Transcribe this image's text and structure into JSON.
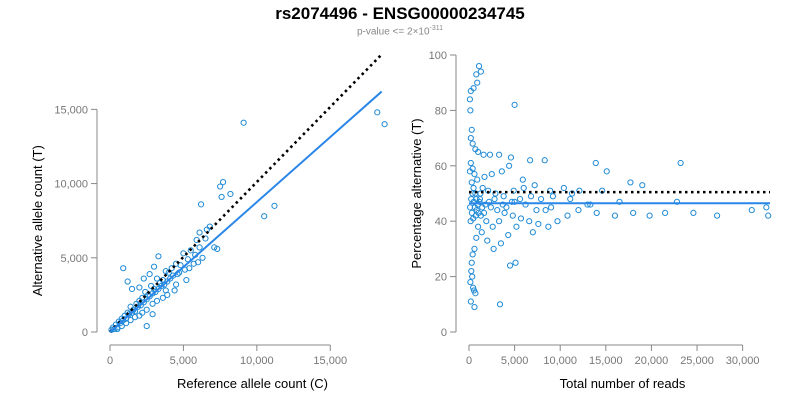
{
  "title": "rs2074496 - ENSG00000234745",
  "subtitle": {
    "prefix": "p-value <= 2×10",
    "exponent": "-311"
  },
  "colors": {
    "points": "#1f8ad6",
    "fit_line": "#2a86e8",
    "dotted_line": "#000000",
    "axis": "#888888",
    "tick_label": "#777777",
    "axis_label": "#000000"
  },
  "chart_data": [
    {
      "type": "scatter",
      "xlabel": "Reference allele count (C)",
      "ylabel": "Alternative allele count (T)",
      "xlim": [
        0,
        19000
      ],
      "ylim": [
        0,
        19000
      ],
      "xticks": [
        0,
        5000,
        10000,
        15000
      ],
      "xtick_labels": [
        "0",
        "5,000",
        "10,000",
        "15,000"
      ],
      "yticks": [
        0,
        5000,
        10000,
        15000
      ],
      "ytick_labels": [
        "0",
        "5,000",
        "10,000",
        "15,000"
      ],
      "marker": "open-circle",
      "lines": [
        {
          "style": "dotted",
          "x": [
            0,
            18500
          ],
          "y": [
            0,
            18700
          ]
        },
        {
          "style": "solid",
          "x": [
            0,
            18500
          ],
          "y": [
            0,
            16200
          ]
        }
      ],
      "points": [
        [
          18200,
          14800
        ],
        [
          18700,
          14000
        ],
        [
          9100,
          14100
        ],
        [
          11200,
          8500
        ],
        [
          10500,
          7800
        ],
        [
          8200,
          9300
        ],
        [
          7600,
          9100
        ],
        [
          7500,
          9800
        ],
        [
          7700,
          10100
        ],
        [
          6200,
          8600
        ],
        [
          6800,
          7100
        ],
        [
          6600,
          6900
        ],
        [
          6500,
          6300
        ],
        [
          5900,
          6200
        ],
        [
          6100,
          6700
        ],
        [
          5500,
          5500
        ],
        [
          5800,
          5200
        ],
        [
          5300,
          4900
        ],
        [
          5000,
          5300
        ],
        [
          4800,
          4500
        ],
        [
          4500,
          4600
        ],
        [
          4200,
          4300
        ],
        [
          4000,
          4000
        ],
        [
          3800,
          4100
        ],
        [
          3600,
          3500
        ],
        [
          3400,
          3300
        ],
        [
          3200,
          3600
        ],
        [
          3000,
          2900
        ],
        [
          2800,
          3100
        ],
        [
          2600,
          2500
        ],
        [
          2400,
          2700
        ],
        [
          2200,
          2300
        ],
        [
          2000,
          2100
        ],
        [
          1800,
          1900
        ],
        [
          1600,
          1500
        ],
        [
          1400,
          1700
        ],
        [
          1200,
          1300
        ],
        [
          1000,
          1100
        ],
        [
          800,
          900
        ],
        [
          600,
          700
        ],
        [
          400,
          500
        ],
        [
          200,
          300
        ],
        [
          100,
          150
        ],
        [
          300,
          200
        ],
        [
          500,
          300
        ],
        [
          700,
          600
        ],
        [
          900,
          800
        ],
        [
          1100,
          900
        ],
        [
          1300,
          1200
        ],
        [
          1500,
          1300
        ],
        [
          1700,
          1400
        ],
        [
          1900,
          1700
        ],
        [
          2100,
          1800
        ],
        [
          2300,
          2000
        ],
        [
          2500,
          2200
        ],
        [
          2700,
          2400
        ],
        [
          2900,
          2600
        ],
        [
          3100,
          2700
        ],
        [
          3300,
          2900
        ],
        [
          3500,
          3100
        ],
        [
          3700,
          3200
        ],
        [
          3900,
          3400
        ],
        [
          4100,
          3600
        ],
        [
          4300,
          3800
        ],
        [
          4600,
          3900
        ],
        [
          5100,
          4200
        ],
        [
          5400,
          4300
        ],
        [
          5700,
          4600
        ],
        [
          6000,
          4700
        ],
        [
          6300,
          5000
        ],
        [
          7100,
          5700
        ],
        [
          7300,
          5600
        ],
        [
          4400,
          2800
        ],
        [
          3900,
          2500
        ],
        [
          3600,
          2300
        ],
        [
          3200,
          2100
        ],
        [
          2900,
          1900
        ],
        [
          2500,
          1500
        ],
        [
          2200,
          1300
        ],
        [
          2000,
          1100
        ],
        [
          1700,
          1000
        ],
        [
          1400,
          800
        ],
        [
          1100,
          600
        ],
        [
          800,
          400
        ],
        [
          500,
          200
        ],
        [
          900,
          4300
        ],
        [
          1200,
          3400
        ],
        [
          1500,
          2900
        ],
        [
          2000,
          3000
        ],
        [
          2300,
          3600
        ],
        [
          2700,
          3900
        ],
        [
          3000,
          4400
        ],
        [
          3300,
          5100
        ],
        [
          2500,
          400
        ],
        [
          2900,
          1200
        ],
        [
          3800,
          2800
        ],
        [
          4500,
          3200
        ],
        [
          5200,
          3500
        ],
        [
          6100,
          5700
        ],
        [
          4700,
          4000
        ]
      ]
    },
    {
      "type": "scatter",
      "xlabel": "Total number of reads",
      "ylabel": "Percentage alternative (T)",
      "xlim": [
        0,
        33000
      ],
      "ylim": [
        0,
        100
      ],
      "xticks": [
        0,
        5000,
        10000,
        15000,
        20000,
        25000,
        30000
      ],
      "xtick_labels": [
        "0",
        "5,000",
        "10,000",
        "15,000",
        "20,000",
        "25,000",
        "30,000"
      ],
      "yticks": [
        0,
        20,
        40,
        60,
        80,
        100
      ],
      "ytick_labels": [
        "0",
        "20",
        "40",
        "60",
        "80",
        "100"
      ],
      "marker": "open-circle",
      "lines": [
        {
          "style": "dotted",
          "x": [
            0,
            33000
          ],
          "y": [
            50.5,
            50.5
          ]
        },
        {
          "style": "solid",
          "x": [
            0,
            33000
          ],
          "y": [
            46.5,
            46.5
          ]
        }
      ],
      "points": [
        [
          1100,
          96
        ],
        [
          1300,
          94
        ],
        [
          800,
          93
        ],
        [
          900,
          90
        ],
        [
          200,
          87
        ],
        [
          500,
          88
        ],
        [
          100,
          84
        ],
        [
          5000,
          82
        ],
        [
          150,
          80
        ],
        [
          300,
          73
        ],
        [
          200,
          70
        ],
        [
          400,
          68
        ],
        [
          700,
          66
        ],
        [
          1000,
          65
        ],
        [
          1600,
          64
        ],
        [
          2300,
          64
        ],
        [
          3300,
          64
        ],
        [
          4600,
          63
        ],
        [
          6700,
          62
        ],
        [
          8300,
          62
        ],
        [
          13900,
          61
        ],
        [
          23200,
          61
        ],
        [
          15100,
          58
        ],
        [
          17700,
          54
        ],
        [
          19000,
          53
        ],
        [
          10400,
          52
        ],
        [
          12100,
          51
        ],
        [
          14600,
          51
        ],
        [
          11300,
          50
        ],
        [
          9200,
          49
        ],
        [
          7900,
          48
        ],
        [
          6800,
          49
        ],
        [
          5600,
          48
        ],
        [
          4700,
          47
        ],
        [
          3800,
          49
        ],
        [
          2900,
          50
        ],
        [
          2100,
          51
        ],
        [
          1500,
          52
        ],
        [
          900,
          55
        ],
        [
          600,
          57
        ],
        [
          400,
          59
        ],
        [
          200,
          61
        ],
        [
          100,
          58
        ],
        [
          300,
          54
        ],
        [
          500,
          52
        ],
        [
          700,
          50
        ],
        [
          1200,
          48
        ],
        [
          1800,
          46
        ],
        [
          2400,
          45
        ],
        [
          3100,
          44
        ],
        [
          3900,
          43
        ],
        [
          4800,
          42
        ],
        [
          5700,
          41
        ],
        [
          6600,
          40
        ],
        [
          7600,
          39
        ],
        [
          8700,
          38
        ],
        [
          9700,
          40
        ],
        [
          10800,
          42
        ],
        [
          12000,
          44
        ],
        [
          13000,
          46
        ],
        [
          14000,
          43
        ],
        [
          16000,
          42
        ],
        [
          18000,
          43
        ],
        [
          19800,
          42
        ],
        [
          21500,
          43
        ],
        [
          22800,
          47
        ],
        [
          24600,
          43
        ],
        [
          27200,
          42
        ],
        [
          31000,
          44
        ],
        [
          32600,
          45
        ],
        [
          32800,
          42
        ],
        [
          16500,
          47
        ],
        [
          13300,
          46
        ],
        [
          9000,
          45
        ],
        [
          7000,
          36
        ],
        [
          5200,
          38
        ],
        [
          4300,
          35
        ],
        [
          3500,
          32
        ],
        [
          2700,
          30
        ],
        [
          2000,
          33
        ],
        [
          1400,
          36
        ],
        [
          1000,
          38
        ],
        [
          800,
          34
        ],
        [
          600,
          30
        ],
        [
          400,
          28
        ],
        [
          300,
          25
        ],
        [
          250,
          22
        ],
        [
          350,
          20
        ],
        [
          150,
          18
        ],
        [
          450,
          16
        ],
        [
          550,
          15
        ],
        [
          700,
          14
        ],
        [
          200,
          11
        ],
        [
          600,
          9
        ],
        [
          3400,
          10
        ],
        [
          4500,
          24
        ],
        [
          5100,
          25
        ],
        [
          1700,
          56
        ],
        [
          2500,
          57
        ],
        [
          3600,
          58
        ],
        [
          4400,
          60
        ],
        [
          5900,
          55
        ],
        [
          7200,
          53
        ],
        [
          8900,
          51
        ],
        [
          11100,
          48
        ],
        [
          1300,
          42
        ],
        [
          1900,
          40
        ],
        [
          2600,
          38
        ],
        [
          3300,
          40
        ],
        [
          4100,
          45
        ],
        [
          5000,
          47
        ],
        [
          6200,
          46
        ],
        [
          7400,
          44
        ],
        [
          8400,
          44
        ],
        [
          850,
          44
        ],
        [
          950,
          46
        ],
        [
          1150,
          47
        ],
        [
          1450,
          45
        ],
        [
          1650,
          43
        ],
        [
          2200,
          47
        ],
        [
          2800,
          48
        ],
        [
          3700,
          46
        ],
        [
          4900,
          51
        ],
        [
          6000,
          52
        ],
        [
          120,
          45
        ],
        [
          180,
          40
        ],
        [
          240,
          48
        ],
        [
          320,
          43
        ],
        [
          380,
          50
        ],
        [
          460,
          41
        ],
        [
          520,
          47
        ],
        [
          640,
          45
        ],
        [
          740,
          42
        ],
        [
          820,
          48
        ],
        [
          1050,
          43
        ],
        [
          1250,
          50
        ]
      ]
    }
  ]
}
